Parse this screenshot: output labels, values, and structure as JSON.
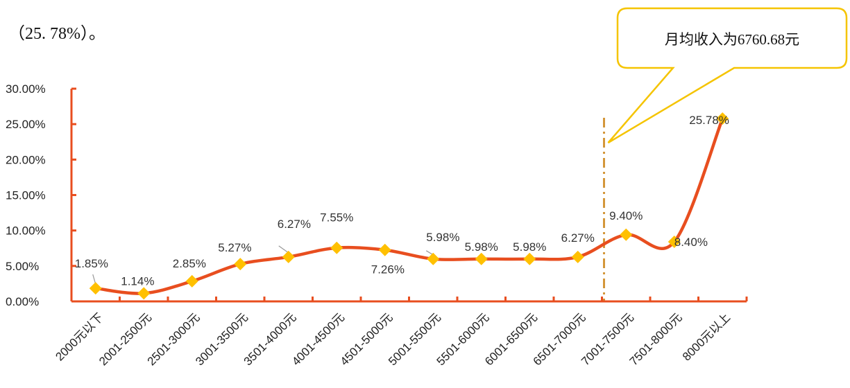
{
  "intro_text": "（25. 78%）。",
  "callout": {
    "text": "月均收入为6760.68元"
  },
  "colors": {
    "line": "#e84e1f",
    "marker": "#ffc000",
    "axis": "#e84e1f",
    "divider": "#d4973a",
    "callout_border": "#f5c400"
  },
  "chart_data": {
    "type": "line",
    "smooth": true,
    "categories": [
      "2000元以下",
      "2001-2500元",
      "2501-3000元",
      "3001-3500元",
      "3501-4000元",
      "4001-4500元",
      "4501-5000元",
      "5001-5500元",
      "5501-6000元",
      "6001-6500元",
      "6501-7000元",
      "7001-7500元",
      "7501-8000元",
      "8000元以上"
    ],
    "series": [
      {
        "values": [
          1.85,
          1.14,
          2.85,
          5.27,
          6.27,
          7.55,
          7.26,
          5.98,
          5.98,
          5.98,
          6.27,
          9.4,
          8.4,
          25.78
        ]
      }
    ],
    "data_labels": [
      "1.85%",
      "1.14%",
      "2.85%",
      "5.27%",
      "6.27%",
      "7.55%",
      "7.26%",
      "5.98%",
      "5.98%",
      "5.98%",
      "6.27%",
      "9.40%",
      "8.40%",
      "25.78%"
    ],
    "y_ticks": [
      "0.00%",
      "5.00%",
      "10.00%",
      "15.00%",
      "20.00%",
      "25.00%",
      "30.00%"
    ],
    "ylim": [
      0,
      30
    ],
    "grid": false,
    "legend": "none",
    "reference_line": {
      "between_categories": [
        "6501-7000元",
        "7001-7500元"
      ],
      "style": "dash-dot"
    }
  }
}
